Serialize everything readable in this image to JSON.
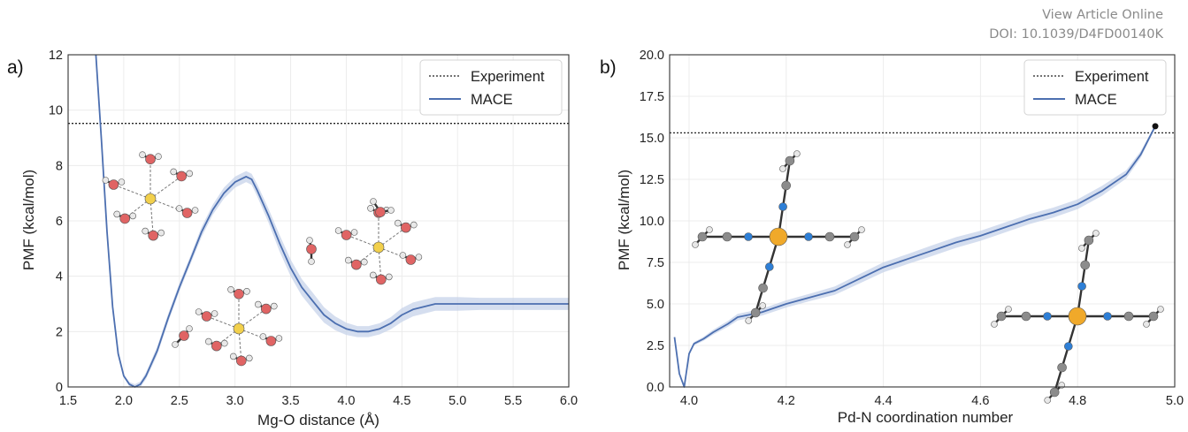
{
  "header": {
    "link_text": "View Article Online",
    "doi": "DOI: 10.1039/D4FD00140K"
  },
  "colors": {
    "mace": "#4c6fb0",
    "band": "#c7d3ea",
    "experiment": "#222222",
    "grid": "#ececec",
    "atom_mg": "#f2d04c",
    "atom_o": "#e06464",
    "atom_h": "#e8e8e8",
    "atom_n": "#2e7fd6",
    "atom_c": "#8c8c8c",
    "atom_pd": "#f0a92a"
  },
  "chart_data": [
    {
      "type": "line",
      "panel_label": "a)",
      "xlabel": "Mg-O distance (Å)",
      "ylabel": "PMF (kcal/mol)",
      "xlim": [
        1.5,
        6.0
      ],
      "ylim": [
        0,
        12
      ],
      "xticks": [
        "1.5",
        "2.0",
        "2.5",
        "3.0",
        "3.5",
        "4.0",
        "4.5",
        "5.0",
        "5.5",
        "6.0"
      ],
      "yticks": [
        "0",
        "2",
        "4",
        "6",
        "8",
        "10",
        "12"
      ],
      "grid": true,
      "legend_position": "top-right",
      "legend": [
        "Experiment",
        "MACE"
      ],
      "reference_line": {
        "name": "Experiment",
        "y": 9.52,
        "style": "dotted"
      },
      "series": [
        {
          "name": "MACE",
          "x": [
            1.75,
            1.8,
            1.85,
            1.9,
            1.95,
            2.0,
            2.05,
            2.1,
            2.15,
            2.2,
            2.3,
            2.4,
            2.5,
            2.6,
            2.7,
            2.8,
            2.9,
            3.0,
            3.1,
            3.15,
            3.2,
            3.3,
            3.4,
            3.5,
            3.6,
            3.7,
            3.8,
            3.9,
            4.0,
            4.1,
            4.2,
            4.3,
            4.4,
            4.5,
            4.6,
            4.7,
            4.8,
            4.9,
            5.0,
            5.2,
            5.4,
            5.6,
            5.8,
            6.0
          ],
          "y": [
            12.0,
            8.9,
            5.6,
            2.9,
            1.2,
            0.4,
            0.1,
            0.0,
            0.1,
            0.4,
            1.3,
            2.5,
            3.6,
            4.6,
            5.6,
            6.4,
            7.0,
            7.4,
            7.6,
            7.5,
            7.1,
            6.2,
            5.2,
            4.3,
            3.6,
            3.1,
            2.6,
            2.3,
            2.1,
            2.0,
            2.0,
            2.1,
            2.3,
            2.6,
            2.8,
            2.9,
            3.0,
            3.0,
            3.0,
            3.0,
            3.0,
            3.0,
            3.0,
            3.0
          ],
          "uncertainty": [
            0,
            0,
            0,
            0,
            0,
            0.05,
            0.08,
            0.1,
            0.1,
            0.12,
            0.15,
            0.15,
            0.15,
            0.15,
            0.18,
            0.18,
            0.2,
            0.2,
            0.2,
            0.2,
            0.22,
            0.25,
            0.3,
            0.3,
            0.3,
            0.3,
            0.28,
            0.25,
            0.22,
            0.2,
            0.2,
            0.2,
            0.22,
            0.25,
            0.25,
            0.25,
            0.25,
            0.25,
            0.25,
            0.22,
            0.22,
            0.22,
            0.22,
            0.22
          ]
        }
      ]
    },
    {
      "type": "line",
      "panel_label": "b)",
      "xlabel": "Pd-N coordination number",
      "ylabel": "PMF (kcal/mol)",
      "xlim": [
        3.96,
        5.0
      ],
      "ylim": [
        0,
        20
      ],
      "xticks": [
        "4.0",
        "4.2",
        "4.4",
        "4.6",
        "4.8",
        "5.0"
      ],
      "yticks": [
        "0.0",
        "2.5",
        "5.0",
        "7.5",
        "10.0",
        "12.5",
        "15.0",
        "17.5",
        "20.0"
      ],
      "grid": true,
      "legend_position": "top-right",
      "legend": [
        "Experiment",
        "MACE"
      ],
      "reference_line": {
        "name": "Experiment",
        "y": 15.3,
        "style": "dotted"
      },
      "marker_point": {
        "x": 4.96,
        "y": 15.7
      },
      "series": [
        {
          "name": "MACE",
          "x": [
            3.97,
            3.98,
            3.99,
            4.0,
            4.01,
            4.03,
            4.05,
            4.08,
            4.1,
            4.15,
            4.2,
            4.25,
            4.3,
            4.35,
            4.4,
            4.45,
            4.5,
            4.55,
            4.6,
            4.65,
            4.7,
            4.75,
            4.8,
            4.85,
            4.9,
            4.93,
            4.96
          ],
          "y": [
            3.0,
            0.8,
            0.0,
            2.0,
            2.6,
            2.9,
            3.3,
            3.8,
            4.2,
            4.5,
            5.0,
            5.4,
            5.8,
            6.5,
            7.2,
            7.7,
            8.2,
            8.7,
            9.1,
            9.6,
            10.1,
            10.5,
            11.0,
            11.8,
            12.8,
            14.0,
            15.7
          ],
          "uncertainty": [
            0,
            0,
            0,
            0.1,
            0.1,
            0.12,
            0.15,
            0.18,
            0.2,
            0.2,
            0.22,
            0.22,
            0.25,
            0.28,
            0.3,
            0.3,
            0.32,
            0.32,
            0.3,
            0.3,
            0.3,
            0.3,
            0.3,
            0.3,
            0.25,
            0.2,
            0.1
          ]
        }
      ]
    }
  ]
}
